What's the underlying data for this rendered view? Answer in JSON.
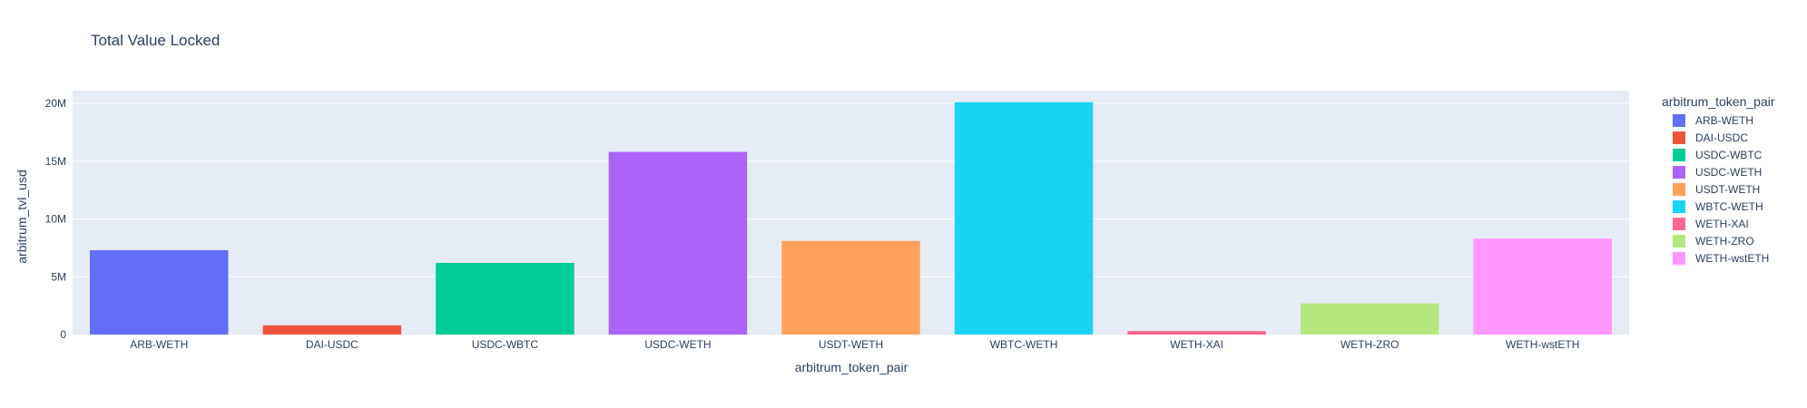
{
  "chart_data": {
    "type": "bar",
    "title": "Total Value Locked",
    "xlabel": "arbitrum_token_pair",
    "ylabel": "arbitrum_tvl_usd",
    "categories": [
      "ARB-WETH",
      "DAI-USDC",
      "USDC-WBTC",
      "USDC-WETH",
      "USDT-WETH",
      "WBTC-WETH",
      "WETH-XAI",
      "WETH-ZRO",
      "WETH-wstETH"
    ],
    "values": [
      7300000,
      800000,
      6200000,
      15800000,
      8100000,
      20100000,
      300000,
      2700000,
      8300000
    ],
    "colors": [
      "#636efa",
      "#EF553B",
      "#00cc96",
      "#ab63fa",
      "#FFA15A",
      "#19d3f3",
      "#FF6692",
      "#B6E880",
      "#FF97FF"
    ],
    "ylim": [
      0,
      21100000
    ],
    "yticks": [
      0,
      5000000,
      10000000,
      15000000,
      20000000
    ],
    "ytick_labels": [
      "0",
      "5M",
      "10M",
      "15M",
      "20M"
    ],
    "grid": true,
    "plot_background": "#E5ECF6",
    "legend": {
      "title": "arbitrum_token_pair",
      "placement": "right",
      "entries": [
        "ARB-WETH",
        "DAI-USDC",
        "USDC-WBTC",
        "USDC-WETH",
        "USDT-WETH",
        "WBTC-WETH",
        "WETH-XAI",
        "WETH-ZRO",
        "WETH-wstETH"
      ]
    }
  }
}
